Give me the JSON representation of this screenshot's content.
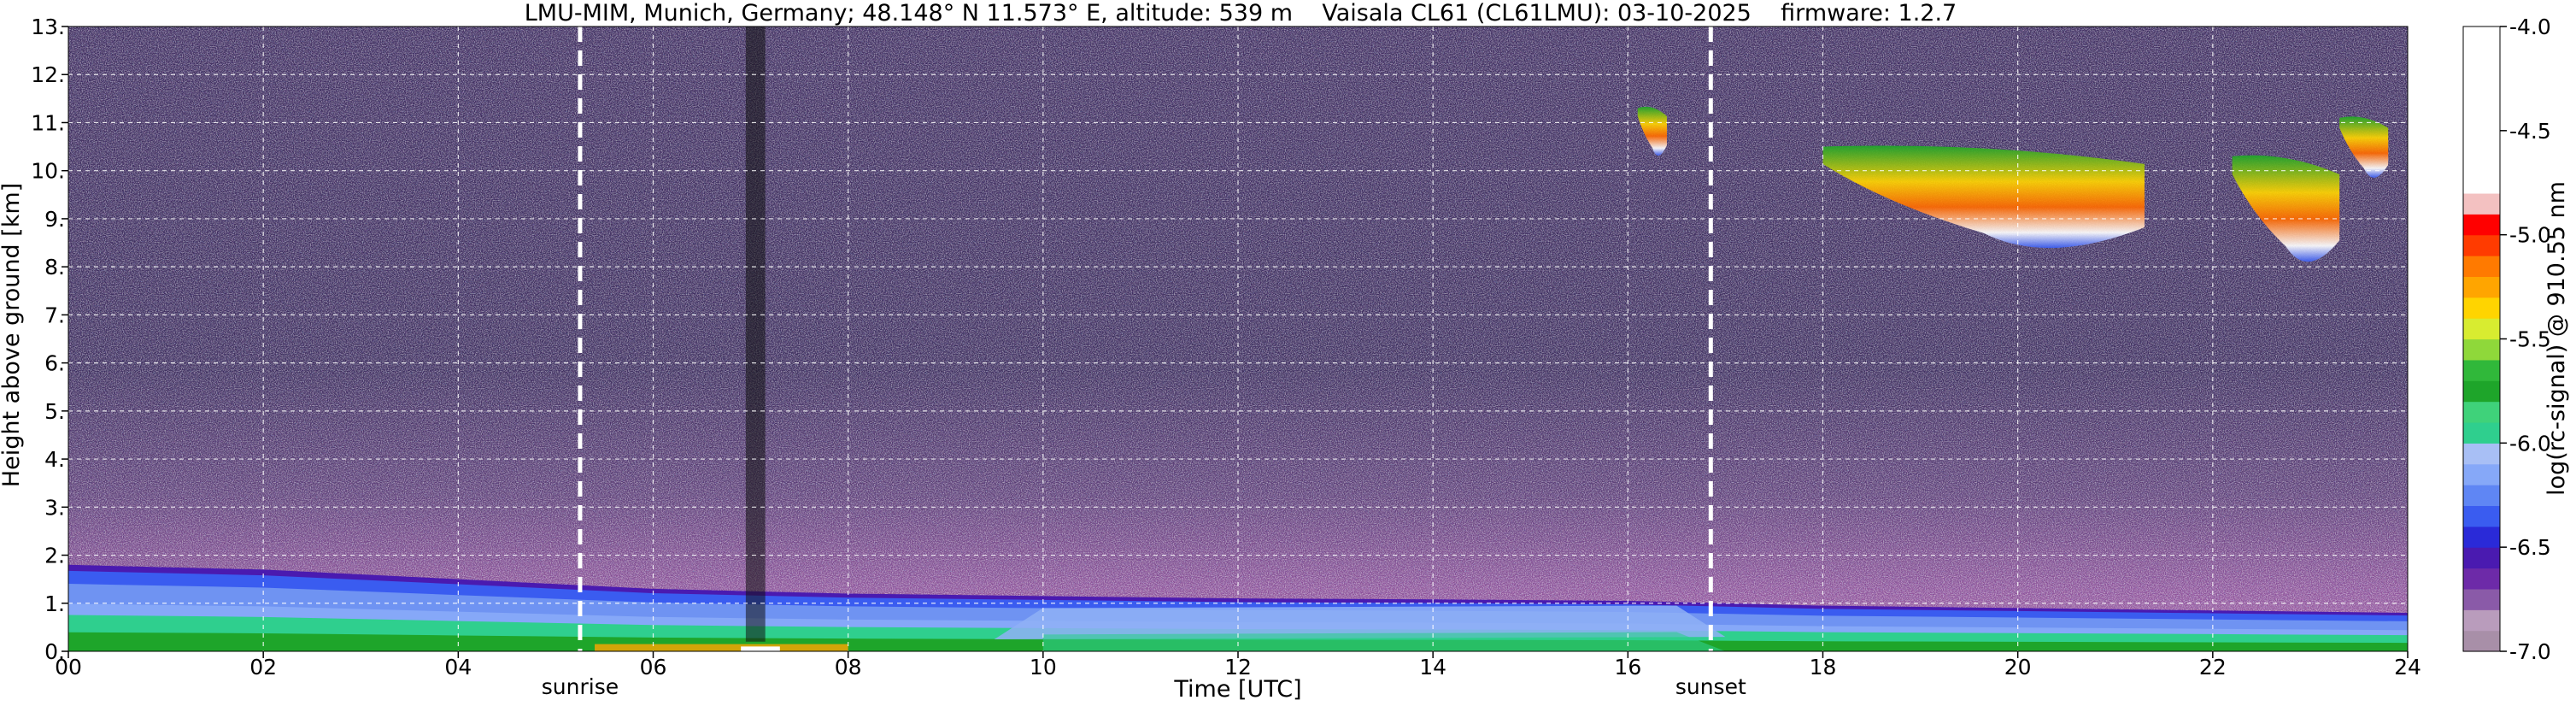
{
  "chart_data": {
    "type": "heatmap",
    "title": "LMU-MIM, Munich, Germany; 48.148° N 11.573° E, altitude: 539 m    Vaisala CL61 (CL61LMU): 03-10-2025    firmware: 1.2.7",
    "xlabel": "Time [UTC]",
    "ylabel": "Height above ground [km]",
    "colorbar_label": "log(rc-signal) @ 910.55 nm",
    "xlim": [
      0,
      24
    ],
    "ylim": [
      0,
      13
    ],
    "clim": [
      -7.0,
      -4.0
    ],
    "grid": true,
    "x_ticks": [
      0,
      2,
      4,
      6,
      8,
      10,
      12,
      14,
      16,
      18,
      20,
      22,
      24
    ],
    "x_tick_labels": [
      "00",
      "02",
      "04",
      "06",
      "08",
      "10",
      "12",
      "14",
      "16",
      "18",
      "20",
      "22",
      "24"
    ],
    "y_ticks": [
      0,
      1,
      2,
      3,
      4,
      5,
      6,
      7,
      8,
      9,
      10,
      11,
      12,
      13
    ],
    "y_tick_labels": [
      "0.",
      "1.",
      "2.",
      "3.",
      "4.",
      "5.",
      "6.",
      "7.",
      "8.",
      "9.",
      "10.",
      "11.",
      "12.",
      "13."
    ],
    "colorbar_ticks": [
      -4.0,
      -4.5,
      -5.0,
      -5.5,
      -6.0,
      -6.5,
      -7.0
    ],
    "colorbar_tick_labels": [
      "-4.0",
      "-4.5",
      "-5.0",
      "-5.5",
      "-6.0",
      "-6.5",
      "-7.0"
    ],
    "colorbar_colors": [
      "#a88fa8",
      "#b99cbc",
      "#8a5aa8",
      "#6d2aa8",
      "#4a1ab0",
      "#2a2ad8",
      "#3a5cf0",
      "#5f86f4",
      "#86a8f8",
      "#a8bff5",
      "#2fcf8e",
      "#3fd27a",
      "#1ea52a",
      "#30b83a",
      "#8fd83a",
      "#d8ec30",
      "#ffd400",
      "#ffa500",
      "#ff7a00",
      "#ff3b00",
      "#ff0000",
      "#f3c1c1",
      "#ffffff",
      "#ffffff",
      "#ffffff",
      "#ffffff",
      "#ffffff",
      "#ffffff",
      "#ffffff",
      "#ffffff"
    ],
    "vlines": [
      {
        "label": "sunrise",
        "x": 5.25
      },
      {
        "label": "sunset",
        "x": 16.85
      }
    ],
    "layers": {
      "mixing_layer_top_km": [
        {
          "x": 0,
          "y": 1.8
        },
        {
          "x": 2,
          "y": 1.7
        },
        {
          "x": 4,
          "y": 1.5
        },
        {
          "x": 6,
          "y": 1.3
        },
        {
          "x": 8,
          "y": 1.2
        },
        {
          "x": 10,
          "y": 1.15
        },
        {
          "x": 12,
          "y": 1.1
        },
        {
          "x": 14,
          "y": 1.08
        },
        {
          "x": 16,
          "y": 1.05
        },
        {
          "x": 18,
          "y": 0.95
        },
        {
          "x": 20,
          "y": 0.9
        },
        {
          "x": 22,
          "y": 0.85
        },
        {
          "x": 24,
          "y": 0.8
        }
      ]
    },
    "cirrus_clouds": [
      {
        "t_start": 18.0,
        "t_end": 21.3,
        "base_km": 8.1,
        "top_km": 10.5
      },
      {
        "t_start": 22.2,
        "t_end": 23.3,
        "base_km": 7.8,
        "top_km": 10.3
      },
      {
        "t_start": 16.1,
        "t_end": 16.4,
        "base_km": 10.2,
        "top_km": 11.3
      },
      {
        "t_start": 23.3,
        "t_end": 23.8,
        "base_km": 9.7,
        "top_km": 11.1
      }
    ]
  }
}
